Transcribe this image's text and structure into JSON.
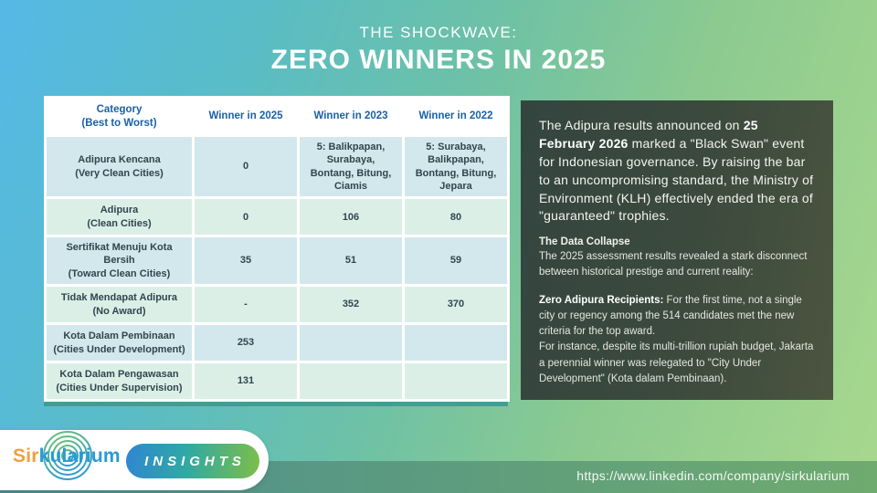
{
  "slide": {
    "kicker": "THE SHOCKWAVE:",
    "title": "ZERO WINNERS IN 2025"
  },
  "table": {
    "col_headers": [
      {
        "line1": "Category",
        "line2": "(Best to Worst)"
      },
      {
        "line1": "Winner in 2025"
      },
      {
        "line1": "Winner in 2023"
      },
      {
        "line1": "Winner in 2022"
      }
    ],
    "rows": [
      {
        "category": "Adipura Kencana",
        "subtitle": "(Very Clean Cities)",
        "winner_2025": "0",
        "big_2025": true,
        "winner_2023": "5: Balikpapan, Surabaya, Bontang, Bitung, Ciamis",
        "small_2023": true,
        "winner_2022": "5: Surabaya, Balikpapan, Bontang, Bitung, Jepara",
        "small_2022": true
      },
      {
        "category": "Adipura",
        "subtitle": "(Clean Cities)",
        "winner_2025": "0",
        "big_2025": true,
        "winner_2023": "106",
        "winner_2022": "80"
      },
      {
        "category": "Sertifikat Menuju Kota Bersih",
        "subtitle": "(Toward Clean Cities)",
        "winner_2025": "35",
        "winner_2023": "51",
        "winner_2022": "59"
      },
      {
        "category": "Tidak Mendapat Adipura",
        "subtitle": "(No Award)",
        "winner_2025": "-",
        "winner_2023": "352",
        "winner_2022": "370"
      },
      {
        "category": "Kota Dalam Pembinaan",
        "subtitle": "(Cities Under Development)",
        "winner_2025": "253",
        "winner_2023": "",
        "winner_2022": ""
      },
      {
        "category": "Kota Dalam Pengawasan",
        "subtitle": "(Cities Under Supervision)",
        "winner_2025": "131",
        "winner_2023": "",
        "winner_2022": ""
      }
    ]
  },
  "panel": {
    "intro": [
      {
        "text": "The Adipura results announced on "
      },
      {
        "text": "25 February 2026",
        "bold": true
      },
      {
        "text": " marked a \"Black Swan\" event for Indonesian governance. By raising the bar to an uncompromising standard, the Ministry of Environment (KLH) effectively ended the era of \"guaranteed\" trophies."
      }
    ],
    "section_heading": "The Data Collapse",
    "section_body": "The 2025 assessment results revealed a stark disconnect between historical prestige and current reality:",
    "detail": [
      {
        "text": "Zero Adipura Recipients:",
        "bold": true
      },
      {
        "text": " For the first time, not a single city or regency among the 514 candidates met the new criteria for the top award.\nFor instance, despite its multi-trillion rupiah budget, Jakarta a perennial winner was relegated to \"City Under Development\" (Kota dalam Pembinaan)."
      }
    ]
  },
  "brand": {
    "logo_prefix": "Sir",
    "logo_suffix": "kularium",
    "badge_label": "INSIGHTS"
  },
  "footer": {
    "url": "https://www.linkedin.com/company/sirkularium"
  },
  "colors": {
    "header_text_blue": "#1a61a7",
    "panel_dark_green": "#3c4a3d",
    "table_row_blue": "#d2e8ec",
    "table_row_mint": "#dcefe7",
    "logo_orange": "#f0a03c",
    "logo_blue": "#2b9ad2",
    "badge_gradient_start": "#2f86d2",
    "badge_gradient_end": "#7dbe48",
    "bg_gradient_start": "#55b9e6",
    "bg_gradient_end": "#a8d88e"
  }
}
